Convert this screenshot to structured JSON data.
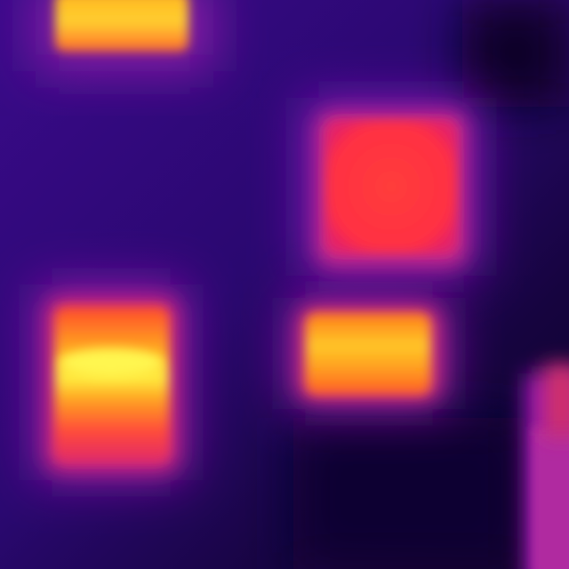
{
  "image": {
    "kind": "thermal-infrared",
    "palette": {
      "background_dark": "#10022e",
      "background_purple": "#3d0a8c",
      "halo_magenta": "#a81a9a",
      "warm_red": "#ff3a3a",
      "hot_orange": "#ff8a1c",
      "hottest_yellow": "#ffe23a"
    },
    "regions": [
      {
        "name": "hot-region-top-left",
        "temperature_level": 0.85
      },
      {
        "name": "hot-region-upper-right",
        "temperature_level": 0.7
      },
      {
        "name": "hot-region-left-middle",
        "temperature_level": 0.95
      },
      {
        "name": "hot-region-center-right",
        "temperature_level": 0.88
      },
      {
        "name": "warm-region-right-edge",
        "temperature_level": 0.45
      }
    ]
  }
}
